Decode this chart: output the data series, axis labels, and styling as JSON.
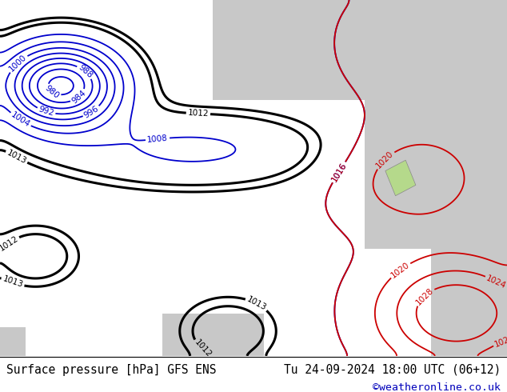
{
  "title_left": "Surface pressure [hPa] GFS ENS",
  "title_right": "Tu 24-09-2024 18:00 UTC (06+12)",
  "credit": "©weatheronline.co.uk",
  "background_land": "#b5d98b",
  "background_sea": "#c8c8c8",
  "text_color_left": "#000000",
  "text_color_right": "#000000",
  "text_color_credit": "#0000bb",
  "font_size_bottom": 10.5,
  "font_size_credit": 9.5,
  "contour_blue_color": "#0000cc",
  "contour_red_color": "#cc0000",
  "contour_black_color": "#000000",
  "contour_linewidth": 1.3,
  "contour_black_linewidth": 2.2,
  "label_fontsize": 7.5
}
